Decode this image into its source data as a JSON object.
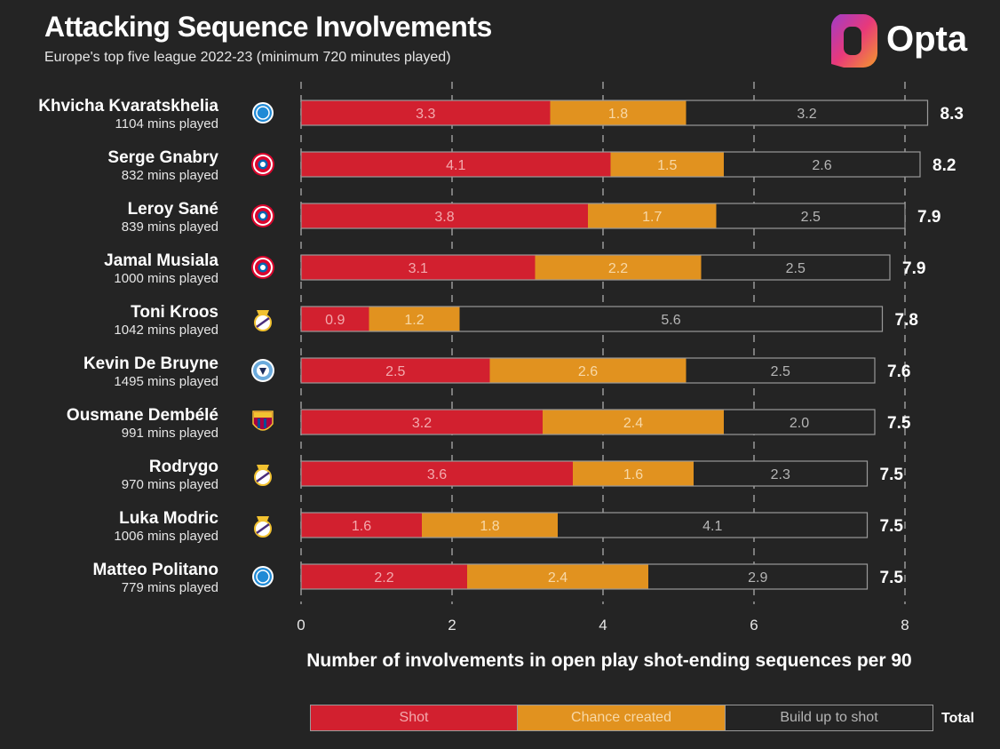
{
  "header": {
    "title": "Attacking Sequence Involvements",
    "subtitle": "Europe's top five league 2022-23 (minimum 720 minutes played)"
  },
  "brand": {
    "name": "Opta"
  },
  "colors": {
    "shot": "#d2202f",
    "chance": "#e1921f",
    "build": "#242424",
    "background": "#242424"
  },
  "legend": {
    "shot": "Shot",
    "chance": "Chance created",
    "build": "Build up to shot",
    "total": "Total"
  },
  "chart_data": {
    "type": "bar",
    "orientation": "horizontal",
    "stacked": true,
    "xlabel": "Number of involvements in open play shot-ending sequences per 90",
    "xlim": [
      0,
      8
    ],
    "xticks": [
      0,
      2,
      4,
      6,
      8
    ],
    "grid": "vertical dashed",
    "legend_position": "bottom",
    "players": [
      {
        "name": "Khvicha Kvaratskhelia",
        "mins": "1104 mins played",
        "club_icon": "napoli-crest-icon",
        "shot": 3.3,
        "chance": 1.8,
        "build": 3.2,
        "total": 8.3
      },
      {
        "name": "Serge Gnabry",
        "mins": "832 mins played",
        "club_icon": "bayern-crest-icon",
        "shot": 4.1,
        "chance": 1.5,
        "build": 2.6,
        "total": 8.2
      },
      {
        "name": "Leroy Sané",
        "mins": "839 mins played",
        "club_icon": "bayern-crest-icon",
        "shot": 3.8,
        "chance": 1.7,
        "build": 2.5,
        "total": 7.9
      },
      {
        "name": "Jamal Musiala",
        "mins": "1000 mins played",
        "club_icon": "bayern-crest-icon",
        "shot": 3.1,
        "chance": 2.2,
        "build": 2.5,
        "total": 7.9
      },
      {
        "name": "Toni Kroos",
        "mins": "1042 mins played",
        "club_icon": "real-madrid-crest-icon",
        "shot": 0.9,
        "chance": 1.2,
        "build": 5.6,
        "total": 7.8
      },
      {
        "name": "Kevin De Bruyne",
        "mins": "1495 mins played",
        "club_icon": "man-city-crest-icon",
        "shot": 2.5,
        "chance": 2.6,
        "build": 2.5,
        "total": 7.6
      },
      {
        "name": "Ousmane Dembélé",
        "mins": "991 mins played",
        "club_icon": "barcelona-crest-icon",
        "shot": 3.2,
        "chance": 2.4,
        "build": 2.0,
        "total": 7.5
      },
      {
        "name": "Rodrygo",
        "mins": "970 mins played",
        "club_icon": "real-madrid-crest-icon",
        "shot": 3.6,
        "chance": 1.6,
        "build": 2.3,
        "total": 7.5
      },
      {
        "name": "Luka Modric",
        "mins": "1006 mins played",
        "club_icon": "real-madrid-crest-icon",
        "shot": 1.6,
        "chance": 1.8,
        "build": 4.1,
        "total": 7.5
      },
      {
        "name": "Matteo Politano",
        "mins": "779 mins played",
        "club_icon": "napoli-crest-icon",
        "shot": 2.2,
        "chance": 2.4,
        "build": 2.9,
        "total": 7.5
      }
    ]
  }
}
